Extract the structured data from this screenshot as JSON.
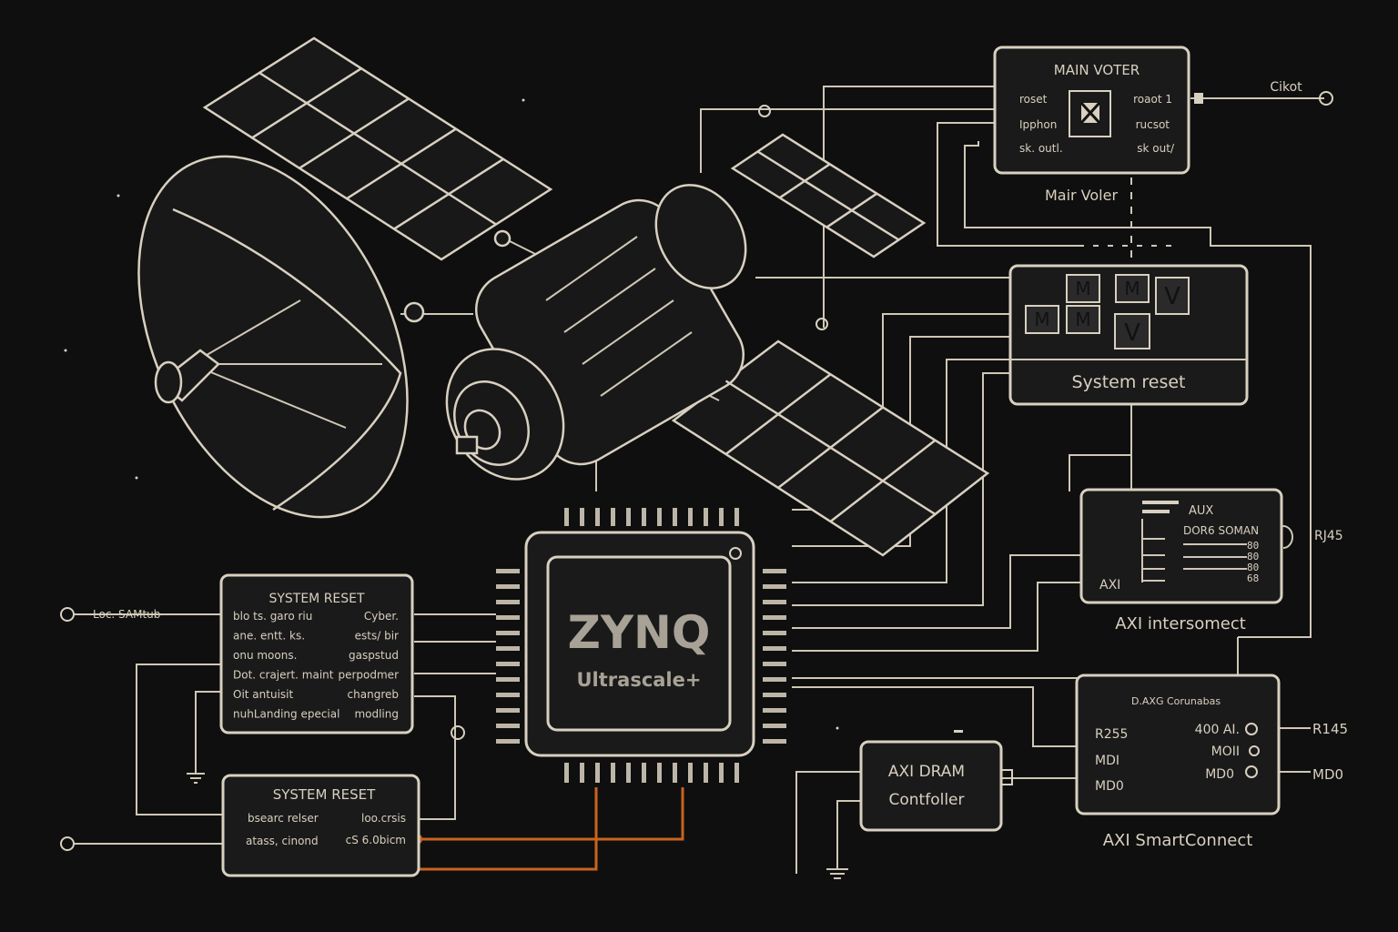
{
  "main_voter": {
    "title": "MAIN VOTER",
    "left_ports": [
      "roset",
      "Ipphon",
      "sk. outl."
    ],
    "right_ports": [
      "roaot 1",
      "rucsot",
      "sk out/"
    ],
    "caption": "Mair Voler",
    "output_label": "Cikot"
  },
  "system_reset_top": {
    "blocks_row1": [
      "M",
      "M",
      "V"
    ],
    "blocks_row2": [
      "M",
      "M",
      "V"
    ],
    "caption": "System reset"
  },
  "axi_interconnect": {
    "lines": [
      "AUX",
      "DOR6 SOMAN",
      "AXI"
    ],
    "right_codes": [
      "80",
      "80",
      "80",
      "68"
    ],
    "port_label": "RJ45",
    "caption": "AXI intersomect"
  },
  "axi_smartconnect": {
    "title": "D.AXG Corunabas",
    "left_ports": [
      "R255",
      "MDI",
      "MD0"
    ],
    "right_ports": [
      "400 AI.",
      "MOII",
      "MD0"
    ],
    "external": [
      "R145",
      "MD0"
    ],
    "caption": "AXI SmartConnect"
  },
  "axi_dram": {
    "line1": "AXI DRAM",
    "line2": "Contfoller"
  },
  "chip": {
    "title": "ZYNQ",
    "subtitle": "Ultrascale+"
  },
  "system_reset_left": {
    "title": "SYSTEM RESET",
    "rows": [
      [
        "blo ts. garo riu",
        "Cyber."
      ],
      [
        "ane. entt. ks.",
        "ests/ bir"
      ],
      [
        "onu moons.",
        "gaspstud"
      ],
      [
        "Dot. crajert. maint",
        "perpodmer"
      ],
      [
        "Oit antuisit",
        "changreb"
      ],
      [
        "nuhLanding epecial",
        "modling"
      ]
    ],
    "input_label": "Loc. SAMtub"
  },
  "system_reset_bottom": {
    "title": "SYSTEM RESET",
    "rows": [
      [
        "bsearc relser",
        "loo.crsis"
      ],
      [
        "atass, cinond",
        "cS 6.0bicm"
      ]
    ]
  },
  "colors": {
    "background": "#0f0f0f",
    "line": "#d8d0c0",
    "accent_wire": "#c8641e"
  }
}
